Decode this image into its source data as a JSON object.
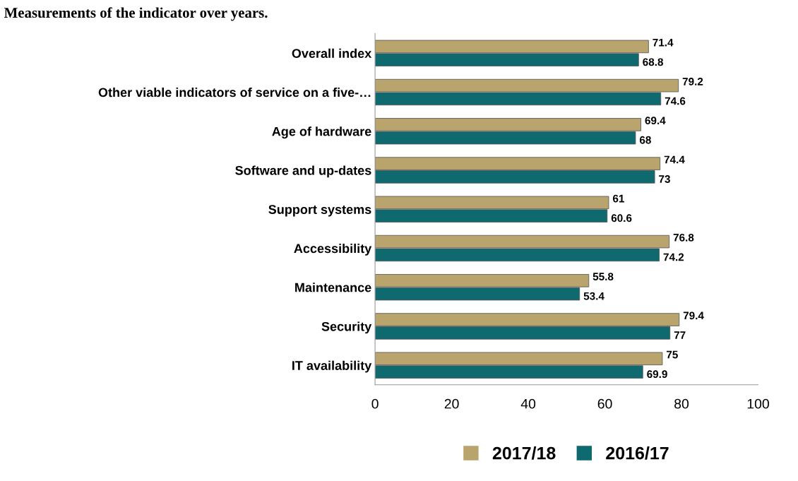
{
  "chart_data": {
    "type": "bar",
    "orientation": "horizontal",
    "title": "Measurements of the indicator over years.",
    "categories": [
      "Overall index",
      "Other viable indicators of service on a five-…",
      "Age of hardware",
      "Software and up-dates",
      "Support systems",
      "Accessibility",
      "Maintenance",
      "Security",
      "IT availability"
    ],
    "series": [
      {
        "name": "2017/18",
        "color": "#b8a46c",
        "values": [
          71.4,
          79.2,
          69.4,
          74.4,
          61,
          76.8,
          55.8,
          79.4,
          75
        ]
      },
      {
        "name": "2016/17",
        "color": "#0e6a6e",
        "values": [
          68.8,
          74.6,
          68,
          73,
          60.6,
          74.2,
          53.4,
          77,
          69.9
        ]
      }
    ],
    "xlim": [
      0,
      100
    ],
    "xticks": [
      0,
      20,
      40,
      60,
      80,
      100
    ],
    "data_labels": true,
    "grid": false,
    "legend": "bottom"
  }
}
